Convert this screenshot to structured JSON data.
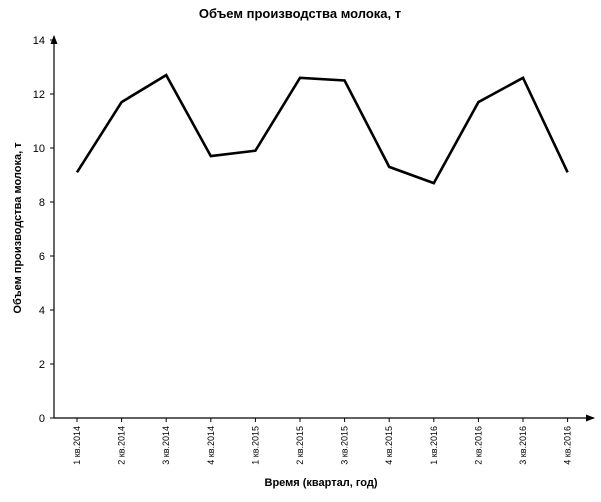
{
  "chart_data": {
    "type": "line",
    "title": "Объем производства молока, т",
    "xlabel": "Время (квартал, год)",
    "ylabel": "Объем производства молока, т",
    "categories": [
      "1 кв.2014",
      "2 кв.2014",
      "3 кв.2014",
      "4 кв.2014",
      "1 кв.2015",
      "2 кв.2015",
      "3 кв.2015",
      "4 кв.2015",
      "1 кв.2016",
      "2 кв.2016",
      "3 кв.2016",
      "4 кв.2016"
    ],
    "series": [
      {
        "values": [
          9.1,
          11.7,
          12.7,
          9.7,
          9.9,
          12.6,
          12.5,
          9.3,
          8.7,
          11.7,
          12.6,
          9.1
        ]
      }
    ],
    "ylim": [
      0,
      14
    ],
    "yticks": [
      0,
      2,
      4,
      6,
      8,
      10,
      12,
      14
    ],
    "grid": false,
    "legend": "none",
    "colors": {
      "line": "#000000",
      "axis": "#000000"
    }
  }
}
